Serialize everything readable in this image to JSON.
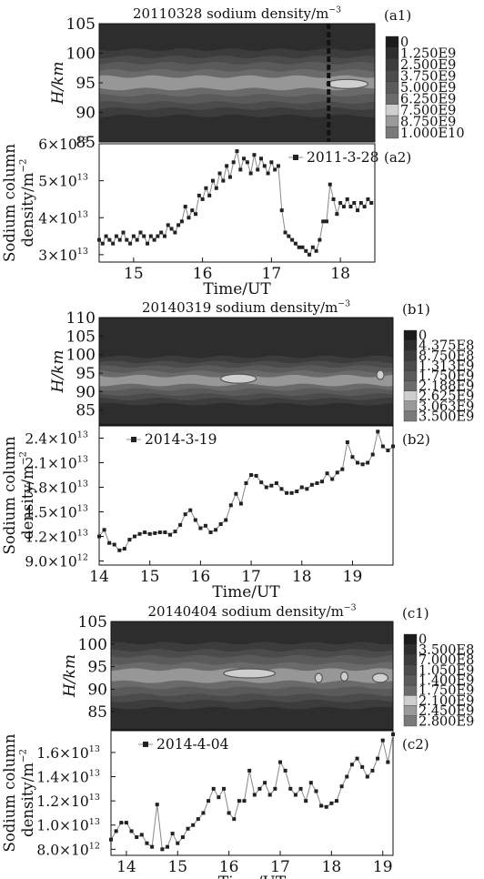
{
  "chart_data": [
    {
      "id": "a1",
      "type": "heatmap",
      "panel_label": "(a1)",
      "title_main": "20110328 sodium density/m",
      "title_sup": "−3",
      "ylabel": "H/km",
      "yticks": [
        "105",
        "100",
        "95",
        "90",
        "85"
      ],
      "ylim": [
        85,
        105
      ],
      "xlim": [
        14.5,
        18.5
      ],
      "colorbar": [
        "0",
        "1.250E9",
        "2.500E9",
        "3.750E9",
        "5.000E9",
        "6.250E9",
        "7.500E9",
        "8.750E9",
        "1.000E10"
      ],
      "colorbar_colors": [
        "#1c1c1c",
        "#2d2d2d",
        "#3d3d3d",
        "#4c4c4c",
        "#5b5b5b",
        "#6b6b6b",
        "#cfcfcf",
        "#9a9a9a",
        "#7a7a7a"
      ],
      "layer_center_km": 95,
      "layer_halfwidth_km": 3.5,
      "peak_segments": [
        [
          17.8,
          18.4,
          94.8
        ]
      ],
      "vertical_line_ut": 17.83
    },
    {
      "id": "a2",
      "type": "line",
      "panel_label": "(a2)",
      "legend": "2011-3-28",
      "ylabel_line1": "Sodium column",
      "ylabel_line2": "density/m",
      "ylabel_sup": "−2",
      "xlabel": "Time/UT",
      "xlim": [
        14.5,
        18.5
      ],
      "xticks": [
        "15",
        "16",
        "17",
        "18"
      ],
      "ylim": [
        2.8,
        6.0
      ],
      "ytick_mantissas": [
        "3×10",
        "4×10",
        "5×10",
        "6×10"
      ],
      "ytick_values": [
        3,
        4,
        5,
        6
      ],
      "ytick_exp": "13",
      "x": [
        14.5,
        14.55,
        14.6,
        14.65,
        14.7,
        14.75,
        14.8,
        14.85,
        14.9,
        14.95,
        15.0,
        15.05,
        15.1,
        15.15,
        15.2,
        15.25,
        15.3,
        15.35,
        15.4,
        15.45,
        15.5,
        15.55,
        15.6,
        15.65,
        15.7,
        15.75,
        15.8,
        15.85,
        15.9,
        15.95,
        16.0,
        16.05,
        16.1,
        16.15,
        16.2,
        16.25,
        16.3,
        16.35,
        16.4,
        16.45,
        16.5,
        16.55,
        16.6,
        16.65,
        16.7,
        16.75,
        16.8,
        16.85,
        16.9,
        16.95,
        17.0,
        17.05,
        17.1,
        17.15,
        17.2,
        17.25,
        17.3,
        17.35,
        17.4,
        17.45,
        17.5,
        17.55,
        17.6,
        17.65,
        17.7,
        17.75,
        17.8,
        17.85,
        17.9,
        17.95,
        18.0,
        18.05,
        18.1,
        18.15,
        18.2,
        18.25,
        18.3,
        18.35,
        18.4,
        18.45
      ],
      "y": [
        3.4,
        3.3,
        3.5,
        3.4,
        3.3,
        3.5,
        3.4,
        3.6,
        3.4,
        3.3,
        3.5,
        3.4,
        3.6,
        3.5,
        3.3,
        3.5,
        3.4,
        3.5,
        3.6,
        3.5,
        3.8,
        3.7,
        3.6,
        3.8,
        3.9,
        4.3,
        4.0,
        4.2,
        4.1,
        4.6,
        4.5,
        4.8,
        4.6,
        5.0,
        4.8,
        5.2,
        5.0,
        5.4,
        5.1,
        5.5,
        5.8,
        5.3,
        5.6,
        5.5,
        5.2,
        5.7,
        5.3,
        5.6,
        5.4,
        5.2,
        5.5,
        5.3,
        5.4,
        4.2,
        3.6,
        3.5,
        3.4,
        3.3,
        3.2,
        3.2,
        3.1,
        3.0,
        3.2,
        3.1,
        3.4,
        3.9,
        3.9,
        4.9,
        4.5,
        4.1,
        4.4,
        4.3,
        4.5,
        4.3,
        4.4,
        4.2,
        4.4,
        4.3,
        4.5,
        4.4
      ]
    },
    {
      "id": "b1",
      "type": "heatmap",
      "panel_label": "(b1)",
      "title_main": "20140319 sodium density/m",
      "title_sup": "−3",
      "ylabel": "H/km",
      "yticks": [
        "110",
        "105",
        "100",
        "95",
        "90",
        "85"
      ],
      "ylim": [
        81,
        110
      ],
      "xlim": [
        14,
        19.8
      ],
      "colorbar": [
        "0",
        "4.375E8",
        "8.750E8",
        "1.313E9",
        "1.750E9",
        "2.188E9",
        "2.625E9",
        "3.063E9",
        "3.500E9"
      ],
      "colorbar_colors": [
        "#1c1c1c",
        "#2d2d2d",
        "#3d3d3d",
        "#4c4c4c",
        "#5b5b5b",
        "#6b6b6b",
        "#cfcfcf",
        "#9a9a9a",
        "#7a7a7a"
      ],
      "layer_center_km": 93,
      "layer_halfwidth_km": 4,
      "peak_segments": [
        [
          16.4,
          17.1,
          93.5
        ],
        [
          19.5,
          19.6,
          94.5
        ]
      ],
      "vertical_line_ut": null
    },
    {
      "id": "b2",
      "type": "line",
      "panel_label": "(b2)",
      "legend": "2014-3-19",
      "ylabel_line1": "Sodium column",
      "ylabel_line2": "density/m",
      "ylabel_sup": "−2",
      "xlabel": "Time/UT",
      "xlim": [
        14,
        19.8
      ],
      "xticks": [
        "14",
        "15",
        "16",
        "17",
        "18",
        "19"
      ],
      "ylim": [
        0.85,
        2.55
      ],
      "ytick_mantissas": [
        "9.0×10",
        "1.2×10",
        "1.5×10",
        "1.8×10",
        "2.1×10",
        "2.4×10"
      ],
      "ytick_values": [
        0.9,
        1.2,
        1.5,
        1.8,
        2.1,
        2.4
      ],
      "ytick_exps": [
        "12",
        "13",
        "13",
        "13",
        "13",
        "13"
      ],
      "x": [
        14.0,
        14.1,
        14.2,
        14.3,
        14.4,
        14.5,
        14.6,
        14.7,
        14.8,
        14.9,
        15.0,
        15.1,
        15.2,
        15.3,
        15.4,
        15.5,
        15.6,
        15.7,
        15.8,
        15.9,
        16.0,
        16.1,
        16.2,
        16.3,
        16.4,
        16.5,
        16.6,
        16.7,
        16.8,
        16.9,
        17.0,
        17.1,
        17.2,
        17.3,
        17.4,
        17.5,
        17.6,
        17.7,
        17.8,
        17.9,
        18.0,
        18.1,
        18.2,
        18.3,
        18.4,
        18.5,
        18.6,
        18.7,
        18.8,
        18.9,
        19.0,
        19.1,
        19.2,
        19.3,
        19.4,
        19.5,
        19.6,
        19.7,
        19.8
      ],
      "y": [
        1.2,
        1.28,
        1.12,
        1.1,
        1.03,
        1.05,
        1.16,
        1.2,
        1.23,
        1.25,
        1.23,
        1.24,
        1.25,
        1.25,
        1.22,
        1.26,
        1.34,
        1.47,
        1.52,
        1.4,
        1.3,
        1.33,
        1.25,
        1.28,
        1.35,
        1.4,
        1.58,
        1.72,
        1.6,
        1.85,
        1.95,
        1.94,
        1.86,
        1.8,
        1.82,
        1.85,
        1.78,
        1.73,
        1.73,
        1.75,
        1.8,
        1.78,
        1.83,
        1.85,
        1.87,
        1.97,
        1.9,
        1.98,
        2.02,
        2.35,
        2.17,
        2.1,
        2.08,
        2.1,
        2.2,
        2.48,
        2.3,
        2.25,
        2.3
      ]
    },
    {
      "id": "c1",
      "type": "heatmap",
      "panel_label": "(c1)",
      "title_main": "20140404 sodium density/m",
      "title_sup": "−3",
      "ylabel": "H/km",
      "yticks": [
        "105",
        "100",
        "95",
        "90",
        "85"
      ],
      "ylim": [
        81,
        105
      ],
      "xlim": [
        13.7,
        19.2
      ],
      "colorbar": [
        "0",
        "3.500E8",
        "7.000E8",
        "1.050E9",
        "1.400E9",
        "1.750E9",
        "2.100E9",
        "2.450E9",
        "2.800E9"
      ],
      "colorbar_colors": [
        "#1c1c1c",
        "#2d2d2d",
        "#3d3d3d",
        "#4c4c4c",
        "#5b5b5b",
        "#6b6b6b",
        "#cfcfcf",
        "#9a9a9a",
        "#7a7a7a"
      ],
      "layer_center_km": 93,
      "layer_halfwidth_km": 4.5,
      "peak_segments": [
        [
          15.9,
          16.9,
          93.5
        ],
        [
          17.7,
          17.8,
          92.5
        ],
        [
          18.2,
          18.3,
          92.8
        ],
        [
          18.8,
          19.1,
          92.5
        ]
      ],
      "vertical_line_ut": null
    },
    {
      "id": "c2",
      "type": "line",
      "panel_label": "(c2)",
      "legend": "2014-4-04",
      "ylabel_line1": "Sodium column",
      "ylabel_line2": "density/m",
      "ylabel_sup": "−2",
      "xlabel": "Time/UT",
      "xlim": [
        13.7,
        19.2
      ],
      "xticks": [
        "14",
        "15",
        "16",
        "17",
        "18",
        "19"
      ],
      "ylim": [
        0.75,
        1.78
      ],
      "ytick_mantissas": [
        "8.0×10",
        "1.0×10",
        "1.2×10",
        "1.4×10",
        "1.6×10"
      ],
      "ytick_values": [
        0.8,
        1.0,
        1.2,
        1.4,
        1.6
      ],
      "ytick_exps": [
        "12",
        "13",
        "13",
        "13",
        "13"
      ],
      "x": [
        13.7,
        13.8,
        13.9,
        14.0,
        14.1,
        14.2,
        14.3,
        14.4,
        14.5,
        14.6,
        14.7,
        14.8,
        14.9,
        15.0,
        15.1,
        15.2,
        15.3,
        15.4,
        15.5,
        15.6,
        15.7,
        15.8,
        15.9,
        16.0,
        16.1,
        16.2,
        16.3,
        16.4,
        16.5,
        16.6,
        16.7,
        16.8,
        16.9,
        17.0,
        17.1,
        17.2,
        17.3,
        17.4,
        17.5,
        17.6,
        17.7,
        17.8,
        17.9,
        18.0,
        18.1,
        18.2,
        18.3,
        18.4,
        18.5,
        18.6,
        18.7,
        18.8,
        18.9,
        19.0,
        19.1,
        19.2
      ],
      "y": [
        0.88,
        0.95,
        1.02,
        1.02,
        0.95,
        0.9,
        0.92,
        0.85,
        0.82,
        1.17,
        0.8,
        0.82,
        0.93,
        0.85,
        0.9,
        0.97,
        1.0,
        1.05,
        1.1,
        1.2,
        1.3,
        1.23,
        1.3,
        1.1,
        1.05,
        1.2,
        1.2,
        1.45,
        1.25,
        1.3,
        1.35,
        1.25,
        1.3,
        1.52,
        1.45,
        1.3,
        1.25,
        1.3,
        1.2,
        1.35,
        1.28,
        1.16,
        1.15,
        1.18,
        1.2,
        1.32,
        1.4,
        1.5,
        1.55,
        1.48,
        1.4,
        1.45,
        1.55,
        1.7,
        1.52,
        1.75
      ]
    }
  ]
}
